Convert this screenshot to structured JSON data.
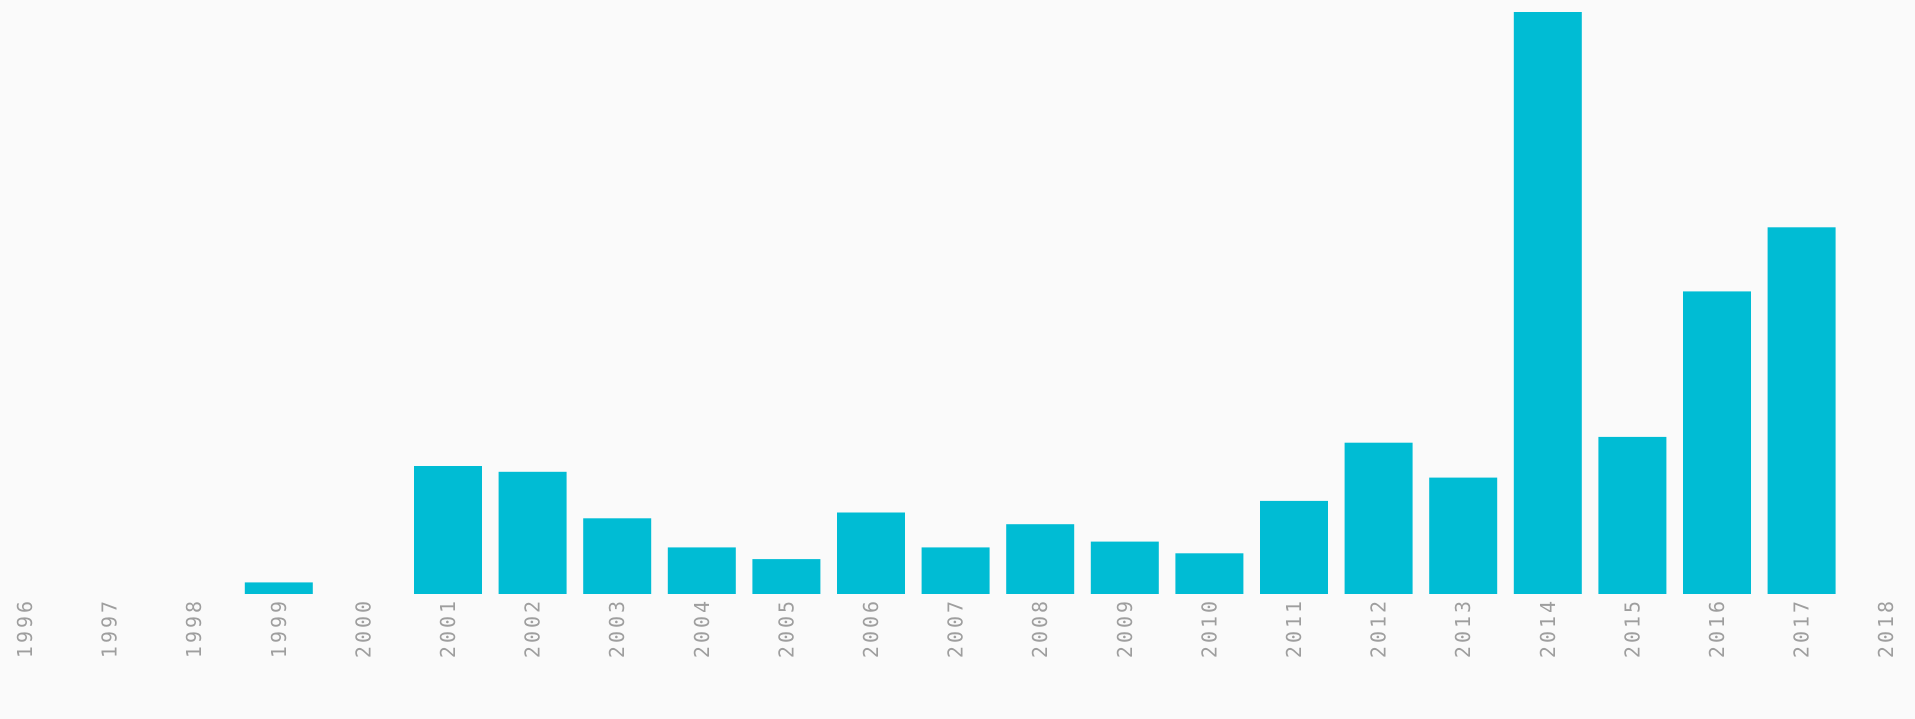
{
  "chart_data": {
    "type": "bar",
    "title": "",
    "xlabel": "",
    "ylabel": "",
    "categories": [
      "1996",
      "1997",
      "1998",
      "1999",
      "2000",
      "2001",
      "2002",
      "2003",
      "2004",
      "2005",
      "2006",
      "2007",
      "2008",
      "2009",
      "2010",
      "2011",
      "2012",
      "2013",
      "2014",
      "2015",
      "2016",
      "2017",
      "2018"
    ],
    "values": [
      0,
      0,
      0,
      2,
      0,
      22,
      21,
      13,
      8,
      6,
      14,
      8,
      12,
      9,
      7,
      16,
      26,
      20,
      100,
      27,
      52,
      63,
      0
    ],
    "ylim": [
      0,
      100
    ],
    "grid": false,
    "legend": "none",
    "colors": {
      "bar": "#00bcd4",
      "tick_text": "#9e9e9e",
      "background": "#fafafa"
    }
  }
}
